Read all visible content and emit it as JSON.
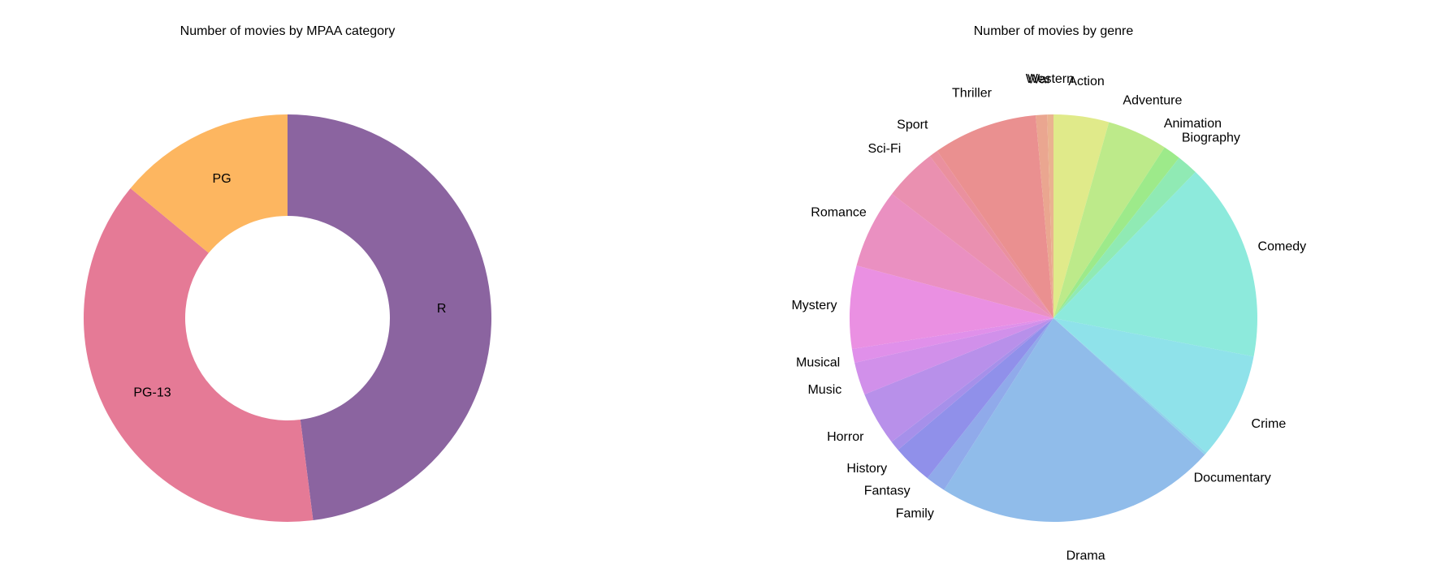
{
  "chart_data": [
    {
      "type": "pie",
      "title": "Number of movies by MPAA category",
      "donut": true,
      "categories": [
        "R",
        "PG-13",
        "PG"
      ],
      "values": [
        48,
        38,
        14
      ],
      "colors": [
        "#8B64A0",
        "#E57A96",
        "#FDB660"
      ]
    },
    {
      "type": "pie",
      "title": "Number of movies by genre",
      "categories": [
        "Action",
        "Adventure",
        "Animation",
        "Biography",
        "Comedy",
        "Crime",
        "Documentary",
        "Drama",
        "Family",
        "Fantasy",
        "History",
        "Horror",
        "Music",
        "Musical",
        "Mystery",
        "Romance",
        "Sci-Fi",
        "Sport",
        "Thriller",
        "War",
        "Western"
      ],
      "values": [
        4.4,
        4.8,
        1.4,
        1.7,
        15.8,
        8.5,
        0.2,
        22.4,
        1.6,
        3.2,
        0.8,
        4.3,
        2.6,
        1.1,
        6.6,
        6.3,
        4.2,
        0.7,
        8.3,
        0.9,
        0.5
      ],
      "colors": [
        "#E0EA8A",
        "#BDEA8A",
        "#9DEA8A",
        "#90EAB4",
        "#8DEADC",
        "#8FE2EA",
        "#8FD5EA",
        "#90BCEA",
        "#90AAEA",
        "#9090EA",
        "#A690EA",
        "#B890EA",
        "#D190EA",
        "#E090EA",
        "#EA90E2",
        "#EA90C1",
        "#EA90B0",
        "#EA909E",
        "#EA9090",
        "#EAA690",
        "#EAB390"
      ]
    }
  ]
}
